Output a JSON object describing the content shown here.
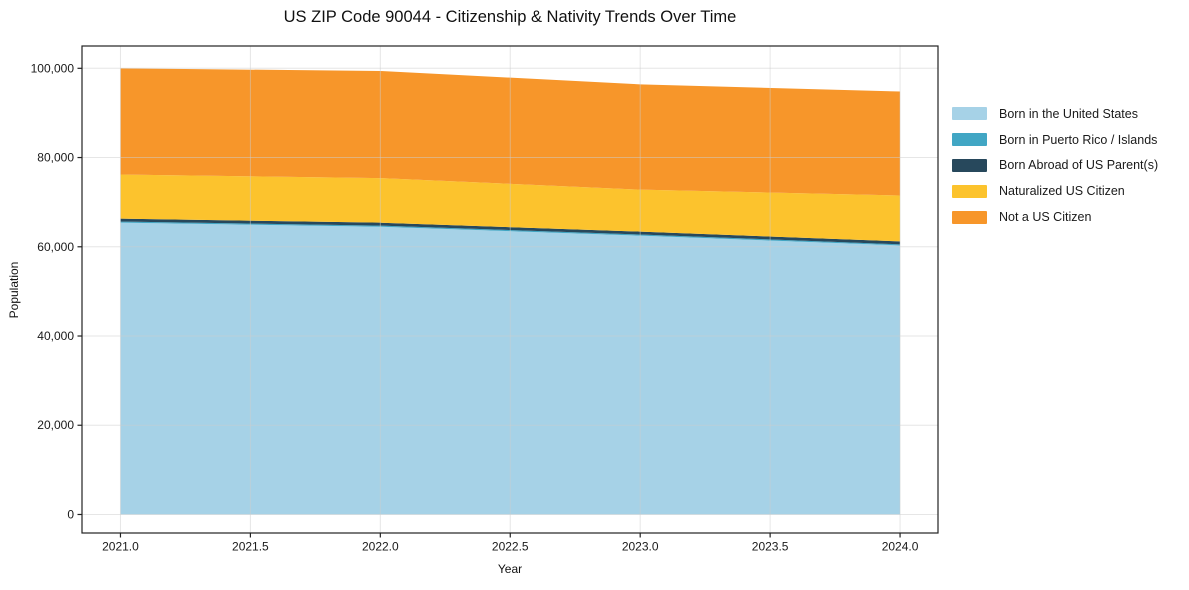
{
  "chart_data": {
    "type": "area",
    "stacked": true,
    "title": "US ZIP Code 90044 - Citizenship & Nativity Trends Over Time",
    "xlabel": "Year",
    "ylabel": "Population",
    "x": [
      2021,
      2022,
      2023,
      2024
    ],
    "series": [
      {
        "name": "Born in the United States",
        "color": "#a6d2e7",
        "values": [
          65400,
          64500,
          62500,
          60300
        ]
      },
      {
        "name": "Born in Puerto Rico / Islands",
        "color": "#41a6c4",
        "values": [
          250,
          250,
          250,
          250
        ]
      },
      {
        "name": "Born Abroad of US Parent(s)",
        "color": "#27485c",
        "values": [
          650,
          650,
          650,
          650
        ]
      },
      {
        "name": "Naturalized US Citizen",
        "color": "#fcc32d",
        "values": [
          9900,
          10000,
          9400,
          10300
        ]
      },
      {
        "name": "Not a US Citizen",
        "color": "#f7962a",
        "values": [
          23800,
          24000,
          23600,
          23300
        ]
      }
    ],
    "totals": [
      100000,
      99400,
      96400,
      94800
    ],
    "xlim": [
      2020.852,
      2024.146
    ],
    "ylim": [
      -4150,
      105000
    ],
    "xticks": [
      2021.0,
      2021.5,
      2022.0,
      2022.5,
      2023.0,
      2023.5,
      2024.0
    ],
    "xtick_labels": [
      "2021.0",
      "2021.5",
      "2022.0",
      "2022.5",
      "2023.0",
      "2023.5",
      "2024.0"
    ],
    "yticks": [
      0,
      20000,
      40000,
      60000,
      80000,
      100000
    ],
    "ytick_labels": [
      "0",
      "20,000",
      "40,000",
      "60,000",
      "80,000",
      "100,000"
    ],
    "grid": true,
    "legend_position": "right",
    "spine_color": "#222222",
    "grid_color": "rgba(205,205,205,0.5)",
    "tick_color": "#222222",
    "text_color": "#1a1a1a"
  }
}
